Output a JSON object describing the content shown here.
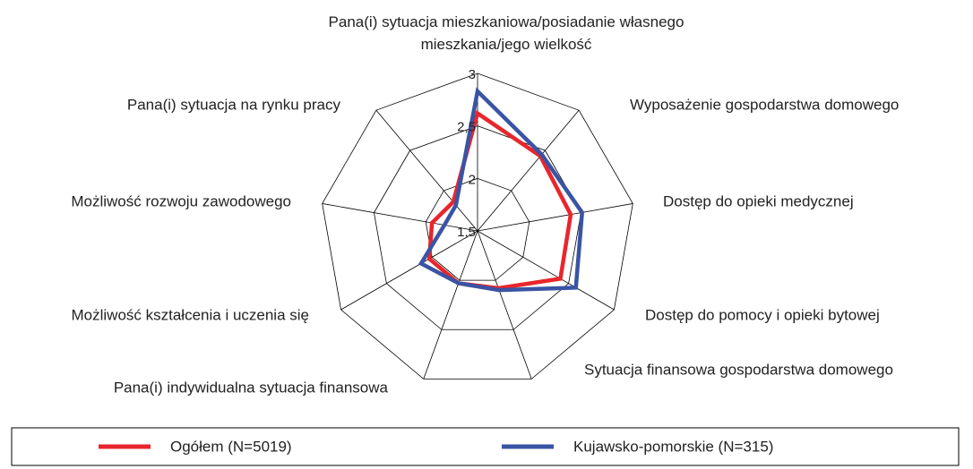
{
  "chart_data": {
    "type": "radar",
    "categories": [
      "Pana(i) sytuacja mieszkaniowa/posiadanie własnego mieszkania/jego wielkość",
      "Wyposażenie gospodarstwa domowego",
      "Dostęp do opieki medycznej",
      "Dostęp do pomocy i opieki bytowej",
      "Sytuacja finansowa gospodarstwa domowego",
      "Pana(i) indywidualna sytuacja finansowa",
      "Możliwość kształcenia i uczenia się",
      "Możliwość rozwoju zawodowego",
      "Pana(i) sytuacja na rynku pracy"
    ],
    "series": [
      {
        "name": "Ogółem (N=5019)",
        "color": "#e8262c",
        "values": [
          2.62,
          2.43,
          2.4,
          2.41,
          2.08,
          2.03,
          2.03,
          1.94,
          1.86
        ]
      },
      {
        "name": "Kujawsko-pomorskie (N=315)",
        "color": "#3a54a4",
        "values": [
          2.83,
          2.45,
          2.51,
          2.58,
          2.1,
          2.03,
          2.12,
          1.82,
          1.82
        ]
      }
    ],
    "ylim": [
      1.5,
      3
    ],
    "yticks": [
      {
        "value": 1.5,
        "label": "1,5"
      },
      2,
      {
        "value": 2.5,
        "label": "2,5"
      },
      3
    ],
    "grid": true,
    "legend": "bottom"
  }
}
